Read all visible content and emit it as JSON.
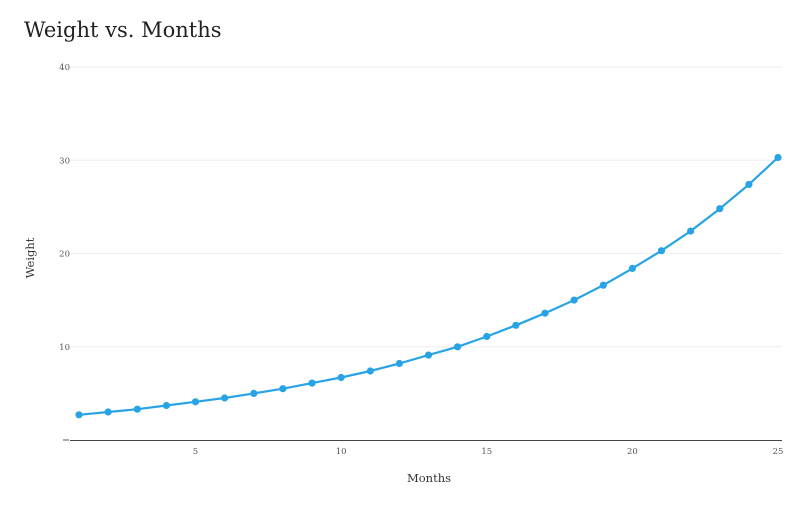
{
  "chart_data": {
    "type": "line",
    "title": "Weight vs. Months",
    "xlabel": "Months",
    "ylabel": "Weight",
    "xlim": [
      1,
      25
    ],
    "ylim": [
      0,
      40
    ],
    "x_ticks": [
      5,
      10,
      15,
      20,
      25
    ],
    "y_ticks": [
      10,
      20,
      30,
      40
    ],
    "grid": true,
    "series_color": "#27a3e6",
    "series": [
      {
        "x": [
          1,
          2,
          3,
          4,
          5,
          6,
          7,
          8,
          9,
          10,
          11,
          12,
          13,
          14,
          15,
          16,
          17,
          18,
          19,
          20,
          21,
          22,
          23,
          24,
          25
        ],
        "values": [
          2.7,
          3.0,
          3.3,
          3.7,
          4.1,
          4.5,
          5.0,
          5.5,
          6.1,
          6.7,
          7.4,
          8.2,
          9.1,
          10.0,
          11.1,
          12.3,
          13.6,
          15.0,
          16.6,
          18.4,
          20.3,
          22.4,
          24.8,
          27.4,
          30.3
        ]
      }
    ]
  }
}
